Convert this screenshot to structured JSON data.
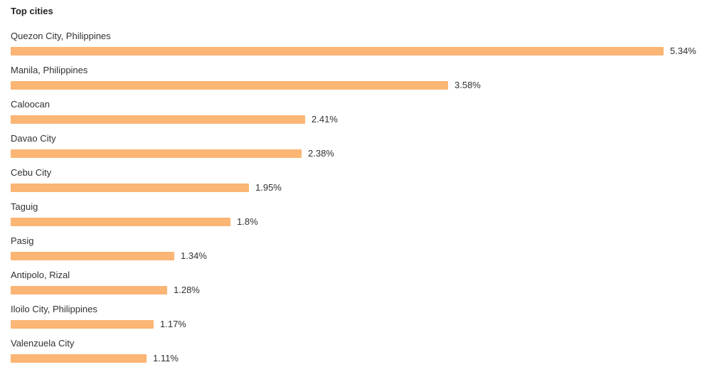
{
  "chart_data": {
    "type": "bar",
    "orientation": "horizontal",
    "title": "Top cities",
    "unit": "%",
    "bar_color": "#FBB574",
    "xlim": [
      0,
      5.34
    ],
    "categories": [
      "Quezon City, Philippines",
      "Manila, Philippines",
      "Caloocan",
      "Davao City",
      "Cebu City",
      "Taguig",
      "Pasig",
      "Antipolo, Rizal",
      "Iloilo City, Philippines",
      "Valenzuela City"
    ],
    "values": [
      5.34,
      3.58,
      2.41,
      2.38,
      1.95,
      1.8,
      1.34,
      1.28,
      1.17,
      1.11
    ],
    "value_labels": [
      "5.34%",
      "3.58%",
      "2.41%",
      "2.38%",
      "1.95%",
      "1.8%",
      "1.34%",
      "1.28%",
      "1.17%",
      "1.11%"
    ]
  }
}
